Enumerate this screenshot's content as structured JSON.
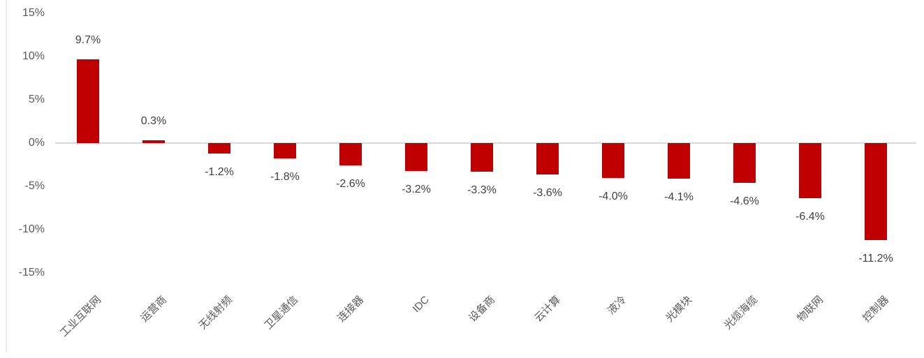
{
  "chart_data": {
    "type": "bar",
    "title": "",
    "xlabel": "",
    "ylabel": "",
    "categories": [
      "工业互联网",
      "运营商",
      "无线射频",
      "卫星通信",
      "连接器",
      "IDC",
      "设备商",
      "云计算",
      "液冷",
      "光模块",
      "光缆海缆",
      "物联网",
      "控制器"
    ],
    "values": [
      9.7,
      0.3,
      -1.2,
      -1.8,
      -2.6,
      -3.2,
      -3.3,
      -3.6,
      -4.0,
      -4.1,
      -4.6,
      -6.4,
      -11.2
    ],
    "data_labels": [
      "9.7%",
      "0.3%",
      "-1.2%",
      "-1.8%",
      "-2.6%",
      "-3.2%",
      "-3.3%",
      "-3.6%",
      "-4.0%",
      "-4.1%",
      "-4.6%",
      "-6.4%",
      "-11.2%"
    ],
    "y_tick_labels": [
      "15%",
      "10%",
      "5%",
      "0%",
      "-5%",
      "-10%",
      "-15%"
    ],
    "y_tick_values": [
      15,
      10,
      5,
      0,
      -5,
      -10,
      -15
    ],
    "ylim": [
      -15,
      15
    ],
    "grid": "zero-line-only",
    "legend": "none",
    "bar_color": "#c00000",
    "axis_line_color": "#d9d9d9",
    "tick_label_color": "#595959",
    "data_label_color": "#404040",
    "category_label_rotation_deg": -45
  }
}
